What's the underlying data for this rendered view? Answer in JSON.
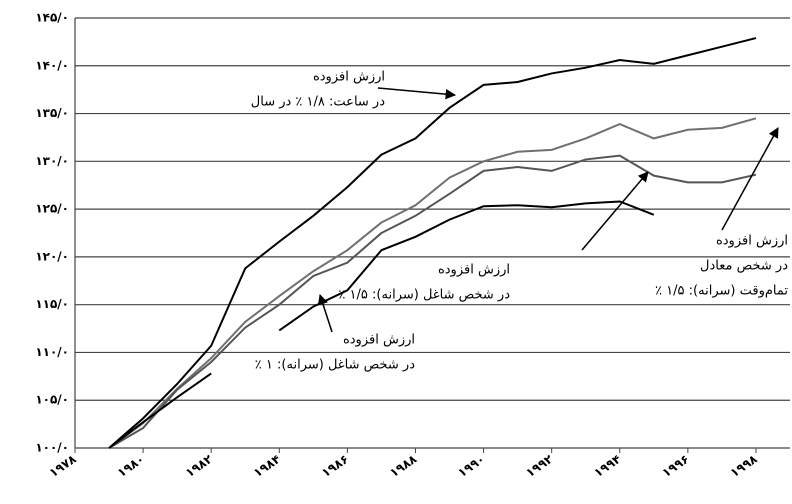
{
  "chart_data": {
    "type": "line",
    "x": [
      1979,
      1980,
      1981,
      1982,
      1983,
      1984,
      1985,
      1986,
      1987,
      1988,
      1989,
      1990,
      1991,
      1992,
      1993,
      1994,
      1995,
      1996,
      1997,
      1998
    ],
    "series": [
      {
        "color": "#000000",
        "values": [
          100,
          103.1,
          106.7,
          110.7,
          118.8,
          121.6,
          124.3,
          127.3,
          130.7,
          132.4,
          135.6,
          138.0,
          138.3,
          139.2,
          139.8,
          140.6,
          140.2,
          141.1,
          142.0,
          142.9
        ]
      },
      {
        "color": "#707070",
        "values": [
          100,
          102.6,
          106.2,
          109.4,
          113.2,
          115.9,
          118.5,
          120.7,
          123.6,
          125.4,
          128.3,
          130.0,
          131.0,
          131.2,
          132.4,
          133.9,
          132.4,
          133.3,
          133.5,
          134.5
        ]
      },
      {
        "color": "#555555",
        "values": [
          100,
          102.1,
          106.1,
          109.0,
          112.6,
          115.0,
          118.0,
          119.4,
          122.5,
          124.3,
          126.6,
          129.0,
          129.4,
          129.0,
          130.2,
          130.6,
          128.5,
          127.8,
          127.8,
          128.6
        ]
      },
      {
        "color": "#000000",
        "values": [
          100,
          102.7,
          105.3,
          107.8,
          null,
          112.3,
          114.8,
          116.5,
          120.7,
          122.1,
          123.9,
          125.3,
          125.4,
          125.2,
          125.6,
          125.8,
          124.4,
          null,
          null,
          null
        ]
      }
    ],
    "xlim": [
      1978,
      1999
    ],
    "xticks": [
      {
        "value": 1978,
        "label": "۱۹۷۸"
      },
      {
        "value": 1980,
        "label": "۱۹۸۰"
      },
      {
        "value": 1982,
        "label": "۱۹۸۲"
      },
      {
        "value": 1984,
        "label": "۱۹۸۴"
      },
      {
        "value": 1986,
        "label": "۱۹۸۶"
      },
      {
        "value": 1988,
        "label": "۱۹۸۸"
      },
      {
        "value": 1990,
        "label": "۱۹۹۰"
      },
      {
        "value": 1992,
        "label": "۱۹۹۲"
      },
      {
        "value": 1994,
        "label": "۱۹۹۴"
      },
      {
        "value": 1996,
        "label": "۱۹۹۶"
      },
      {
        "value": 1998,
        "label": "۱۹۹۸"
      }
    ],
    "ylim": [
      100,
      145
    ],
    "yticks": [
      {
        "value": 100,
        "label": "۱۰۰/۰"
      },
      {
        "value": 105,
        "label": "۱۰۵/۰"
      },
      {
        "value": 110,
        "label": "۱۱۰/۰"
      },
      {
        "value": 115,
        "label": "۱۱۵/۰"
      },
      {
        "value": 120,
        "label": "۱۲۰/۰"
      },
      {
        "value": 125,
        "label": "۱۲۵/۰"
      },
      {
        "value": 130,
        "label": "۱۳۰/۰"
      },
      {
        "value": 135,
        "label": "۱۳۵/۰"
      },
      {
        "value": 140,
        "label": "۱۴۰/۰"
      },
      {
        "value": 145,
        "label": "۱۴۵/۰"
      }
    ],
    "grid": true,
    "annotations": [
      {
        "lines": [
          "ارزش افزوده",
          "در ساعت: ۱/۸ ٪ در سال"
        ]
      },
      {
        "lines": [
          "ارزش افزوده",
          "در شخص شاغل (سرانه): ۱/۵ ٪"
        ]
      },
      {
        "lines": [
          "ارزش افزوده",
          "در شخص معادل",
          "تمام‌وقت (سرانه): ۱/۵ ٪"
        ]
      },
      {
        "lines": [
          "ارزش افزوده",
          "در شخص شاغل (سرانه): ۱ ٪"
        ]
      }
    ]
  }
}
